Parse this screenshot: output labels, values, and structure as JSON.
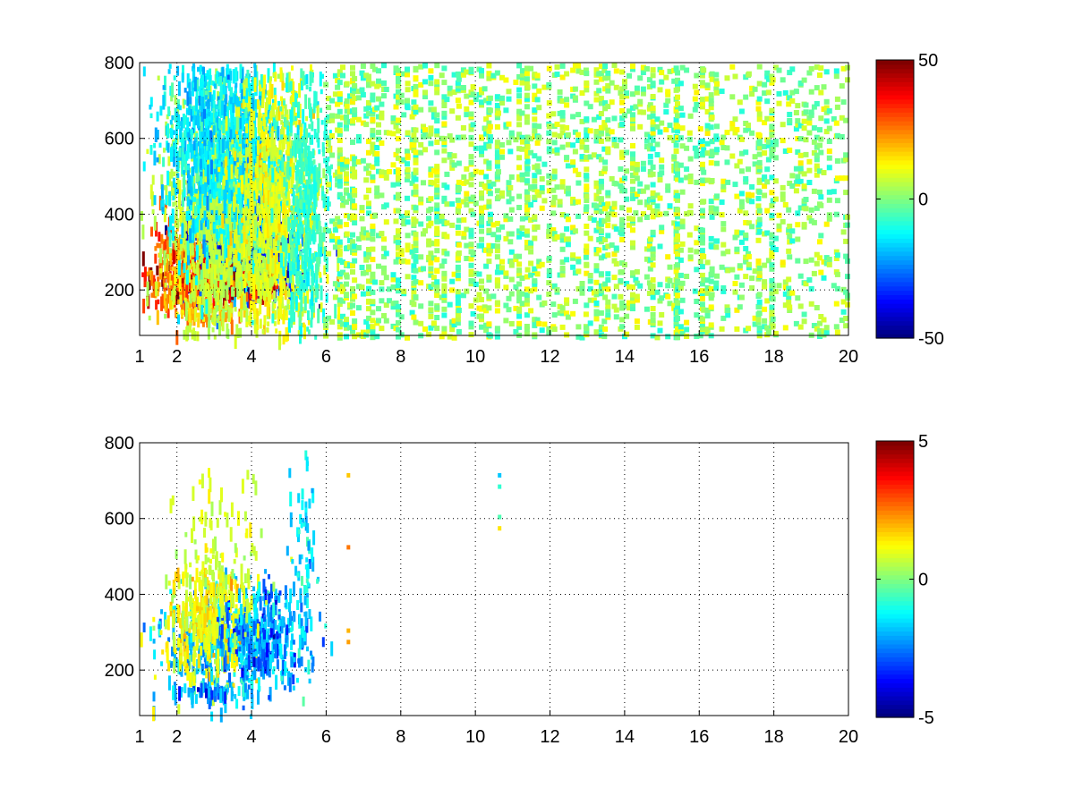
{
  "chart_data": [
    {
      "type": "heatmap",
      "title": "",
      "xlabel": "",
      "ylabel": "",
      "xlim": [
        1,
        20
      ],
      "ylim": [
        80,
        800
      ],
      "x_ticks": [
        1,
        2,
        4,
        6,
        8,
        10,
        12,
        14,
        16,
        18,
        20
      ],
      "y_ticks": [
        200,
        400,
        600,
        800
      ],
      "grid": true,
      "colorbar": {
        "ticks": [
          -50,
          0,
          50
        ],
        "range": [
          -50,
          50
        ],
        "colormap": "jet"
      },
      "value_scale": 50,
      "features": [
        {
          "kind": "blob",
          "x": 3.4,
          "y": 310,
          "sx": 0.7,
          "sy": 60,
          "v": -42,
          "dens": 0.95
        },
        {
          "kind": "blob",
          "x": 4.3,
          "y": 290,
          "sx": 0.5,
          "sy": 50,
          "v": -32,
          "dens": 0.9
        },
        {
          "kind": "blob",
          "x": 2.9,
          "y": 230,
          "sx": 0.9,
          "sy": 25,
          "v": 38,
          "dens": 0.95
        },
        {
          "kind": "blob",
          "x": 2.1,
          "y": 270,
          "sx": 0.4,
          "sy": 55,
          "v": 24,
          "dens": 0.9
        },
        {
          "kind": "blob",
          "x": 2.9,
          "y": 150,
          "sx": 0.6,
          "sy": 10,
          "v": 20,
          "dens": 0.85
        },
        {
          "kind": "blob",
          "x": 3.3,
          "y": 420,
          "sx": 0.8,
          "sy": 160,
          "v": 6,
          "dens": 0.75
        },
        {
          "kind": "blob",
          "x": 3.2,
          "y": 600,
          "sx": 0.8,
          "sy": 140,
          "v": -14,
          "dens": 0.7
        },
        {
          "kind": "blob",
          "x": 4.6,
          "y": 420,
          "sx": 0.6,
          "sy": 200,
          "v": 10,
          "dens": 0.5
        },
        {
          "kind": "blob",
          "x": 5.4,
          "y": 400,
          "sx": 0.35,
          "sy": 200,
          "v": -8,
          "dens": 0.45
        },
        {
          "kind": "scatter",
          "x0": 5.9,
          "x1": 20,
          "y0": 80,
          "y1": 800,
          "vmin": -10,
          "vmax": 14,
          "dens": 0.085
        }
      ]
    },
    {
      "type": "heatmap",
      "title": "",
      "xlabel": "",
      "ylabel": "",
      "xlim": [
        1,
        20
      ],
      "ylim": [
        80,
        800
      ],
      "x_ticks": [
        1,
        2,
        4,
        6,
        8,
        10,
        12,
        14,
        16,
        18,
        20
      ],
      "y_ticks": [
        200,
        400,
        600,
        800
      ],
      "grid": true,
      "colorbar": {
        "ticks": [
          -5,
          0,
          5
        ],
        "range": [
          -5,
          5
        ],
        "colormap": "jet"
      },
      "value_scale": 5,
      "features": [
        {
          "kind": "blob",
          "x": 3.3,
          "y": 290,
          "sx": 0.9,
          "sy": 70,
          "v": -1.8,
          "dens": 0.55
        },
        {
          "kind": "blob",
          "x": 2.7,
          "y": 330,
          "sx": 0.6,
          "sy": 80,
          "v": 1.2,
          "dens": 0.45
        },
        {
          "kind": "blob",
          "x": 4.3,
          "y": 300,
          "sx": 0.6,
          "sy": 70,
          "v": -2.3,
          "dens": 0.4
        },
        {
          "kind": "blob",
          "x": 2.9,
          "y": 150,
          "sx": 0.6,
          "sy": 10,
          "v": -2.2,
          "dens": 0.7
        },
        {
          "kind": "blob",
          "x": 3.1,
          "y": 520,
          "sx": 0.6,
          "sy": 120,
          "v": 0.8,
          "dens": 0.12
        },
        {
          "kind": "blob",
          "x": 5.4,
          "y": 520,
          "sx": 0.2,
          "sy": 150,
          "v": -1.5,
          "dens": 0.15
        },
        {
          "kind": "spot",
          "x": 6.55,
          "y": 720,
          "v": 1.8
        },
        {
          "kind": "spot",
          "x": 6.55,
          "y": 530,
          "v": 2.6
        },
        {
          "kind": "spot",
          "x": 6.55,
          "y": 310,
          "v": 2.0
        },
        {
          "kind": "spot",
          "x": 6.55,
          "y": 280,
          "v": 2.2
        },
        {
          "kind": "spot",
          "x": 10.6,
          "y": 720,
          "v": -1.8
        },
        {
          "kind": "spot",
          "x": 10.6,
          "y": 690,
          "v": -0.8
        },
        {
          "kind": "spot",
          "x": 10.6,
          "y": 580,
          "v": 1.5
        },
        {
          "kind": "spot",
          "x": 10.6,
          "y": 610,
          "v": -0.5
        }
      ]
    }
  ]
}
